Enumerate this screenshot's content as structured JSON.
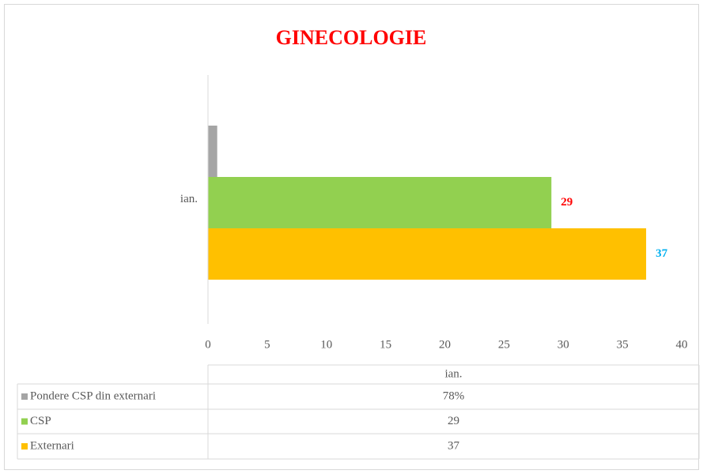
{
  "chart_data": {
    "type": "bar",
    "orientation": "horizontal",
    "title": "GINECOLOGIE",
    "categories": [
      "ian."
    ],
    "series": [
      {
        "name": "Pondere CSP din externari",
        "color": "#a5a5a5",
        "values": [
          0.78
        ],
        "value_labels": [
          "78%"
        ]
      },
      {
        "name": "CSP",
        "color": "#92d050",
        "values": [
          29
        ],
        "label_color": "#ff0000"
      },
      {
        "name": "Externari",
        "color": "#ffc000",
        "values": [
          37
        ],
        "label_color": "#00b0f0"
      }
    ],
    "xlim": [
      0,
      40
    ],
    "xticks": [
      0,
      5,
      10,
      15,
      20,
      25,
      30,
      35,
      40
    ],
    "grid": false,
    "data_table": true
  }
}
